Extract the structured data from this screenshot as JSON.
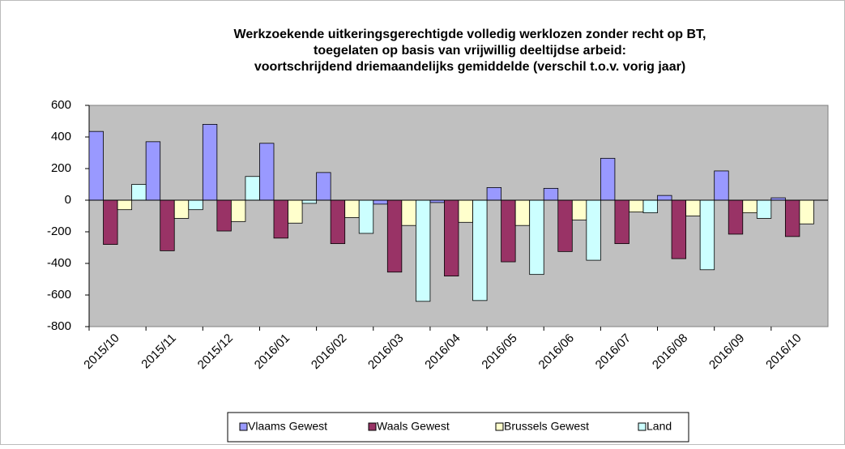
{
  "chart_data": {
    "type": "bar",
    "title": [
      "Werkzoekende uitkeringsgerechtigde volledig werklozen zonder recht op BT,",
      "toegelaten op basis van vrijwillig deeltijdse arbeid:",
      "voortschrijdend driemaandelijks gemiddelde (verschil t.o.v. vorig jaar)"
    ],
    "categories": [
      "2015/10",
      "2015/11",
      "2015/12",
      "2016/01",
      "2016/02",
      "2016/03",
      "2016/04",
      "2016/05",
      "2016/06",
      "2016/07",
      "2016/08",
      "2016/09",
      "2016/10"
    ],
    "series": [
      {
        "name": "Vlaams Gewest",
        "color": "#9999ff",
        "values": [
          435,
          370,
          480,
          360,
          175,
          -25,
          -15,
          80,
          75,
          265,
          30,
          185,
          15
        ]
      },
      {
        "name": "Waals Gewest",
        "color": "#993366",
        "values": [
          -280,
          -320,
          -195,
          -240,
          -275,
          -455,
          -480,
          -390,
          -325,
          -275,
          -370,
          -215,
          -230
        ]
      },
      {
        "name": "Brussels Gewest",
        "color": "#ffffcc",
        "values": [
          -60,
          -115,
          -135,
          -145,
          -110,
          -160,
          -140,
          -160,
          -125,
          -75,
          -100,
          -80,
          -150
        ]
      },
      {
        "name": "Land",
        "color": "#ccffff",
        "values": [
          100,
          -60,
          150,
          -20,
          -210,
          -640,
          -635,
          -470,
          -380,
          -80,
          -440,
          -115,
          null
        ]
      }
    ],
    "ylim": [
      -800,
      600
    ],
    "yticks": [
      -800,
      -600,
      -400,
      -200,
      0,
      200,
      400,
      600
    ],
    "grid": false,
    "legend": "bottom"
  }
}
